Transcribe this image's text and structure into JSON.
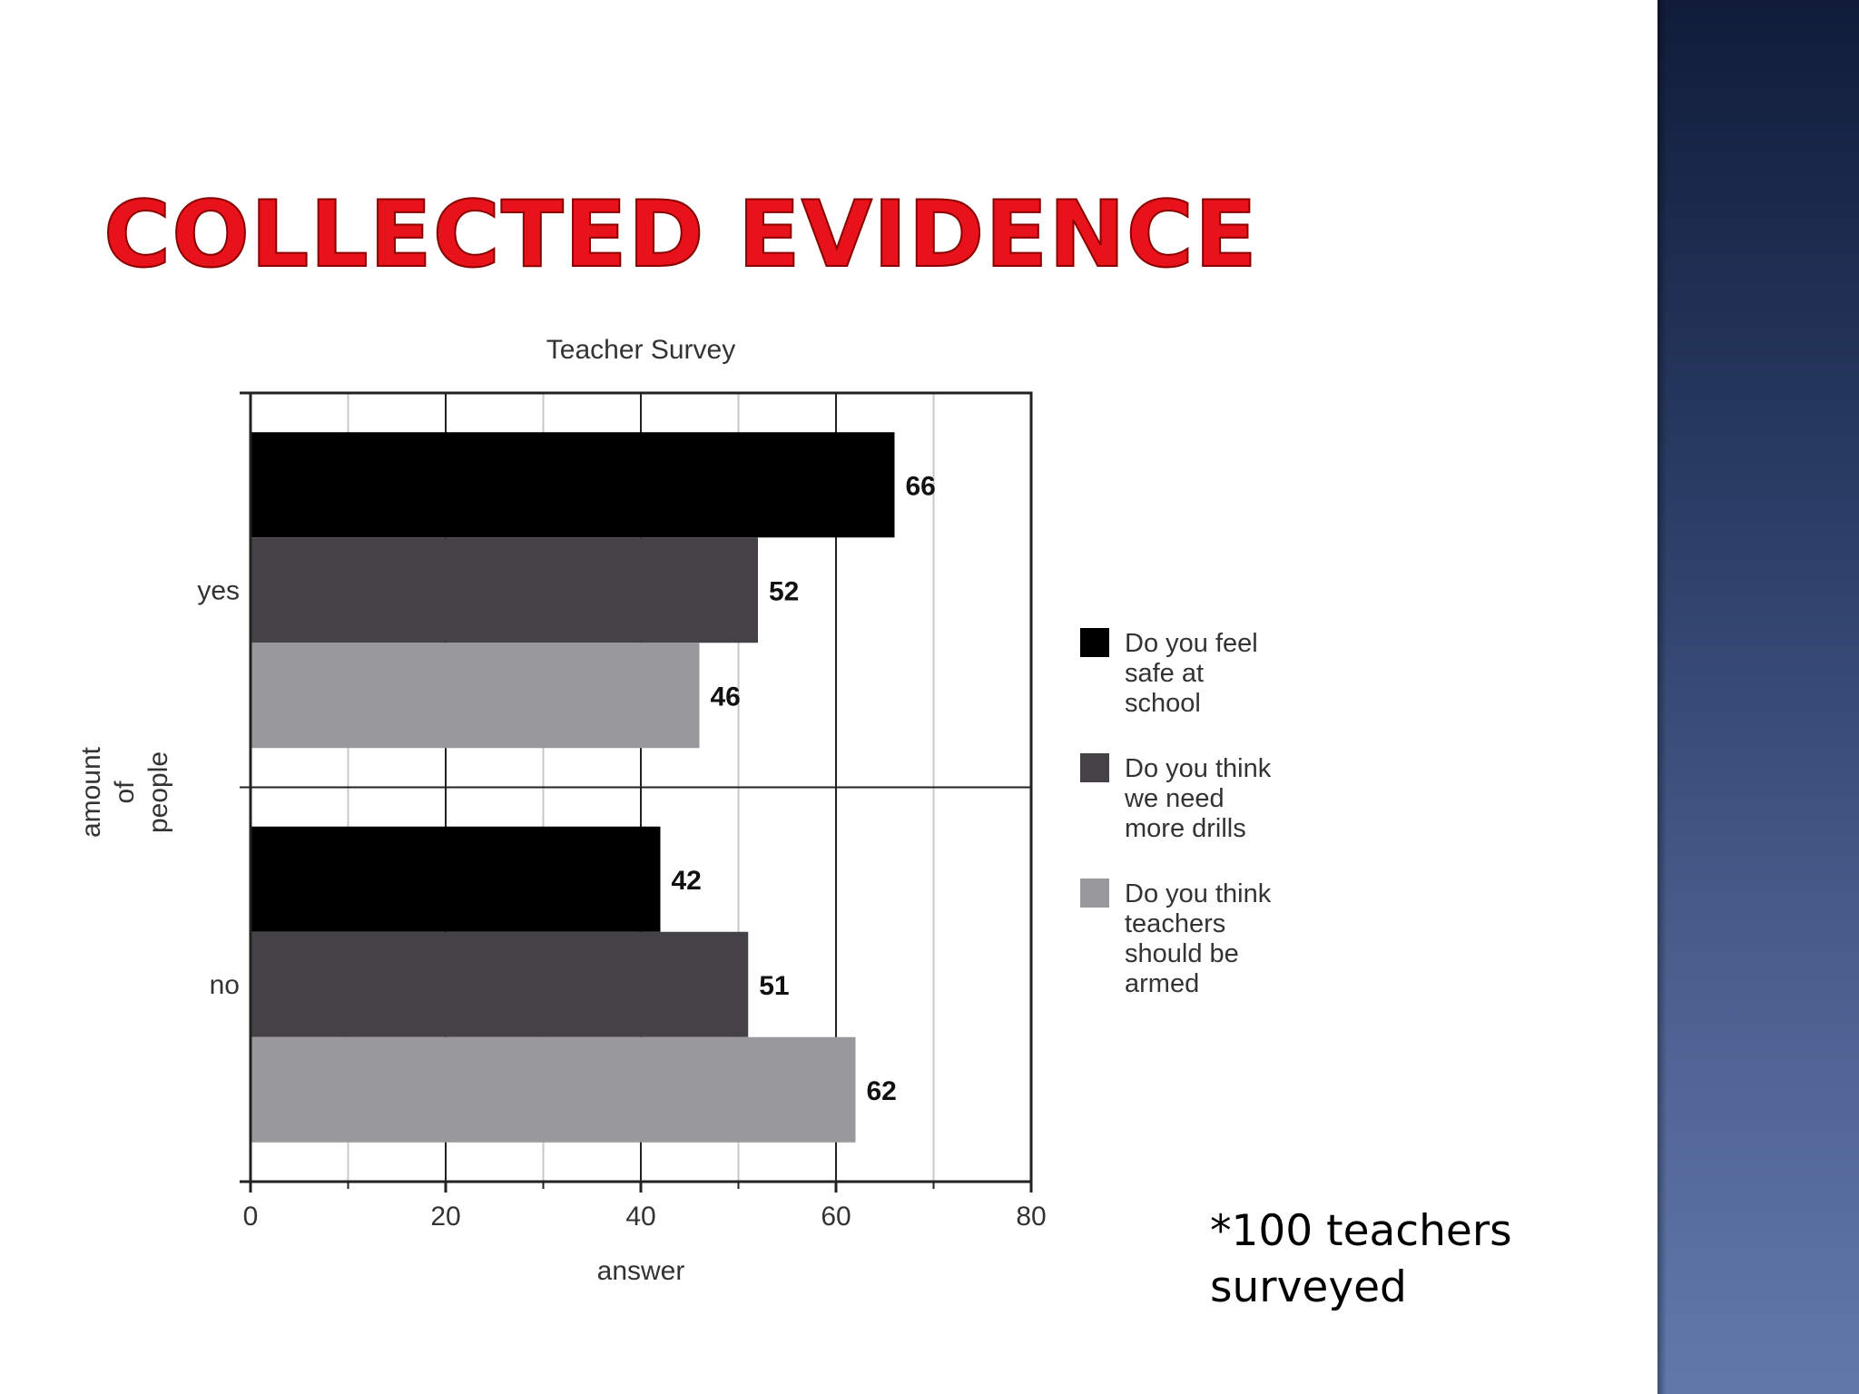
{
  "slide": {
    "title": "COLLECTED EVIDENCE",
    "footnote_lines": [
      "*100 teachers",
      "surveyed"
    ],
    "title_color": "#e8121a"
  },
  "chart_data": {
    "type": "bar",
    "orientation": "horizontal",
    "title": "Teacher Survey",
    "xlabel": "answer",
    "ylabel_lines": [
      "amount",
      "of",
      "people"
    ],
    "categories": [
      "yes",
      "no"
    ],
    "series": [
      {
        "name": "Do you feel safe at school",
        "legend_lines": [
          "Do you feel",
          "safe at",
          "school"
        ],
        "color": "#000000",
        "values": [
          66,
          42
        ]
      },
      {
        "name": "Do you think we need more drills",
        "legend_lines": [
          "Do you think",
          "we need",
          "more drills"
        ],
        "color": "#444246",
        "values": [
          52,
          51
        ]
      },
      {
        "name": "Do you think teachers should be armed",
        "legend_lines": [
          "Do you think",
          "teachers",
          "should be",
          "armed"
        ],
        "color": "#99989b",
        "values": [
          46,
          62
        ]
      }
    ],
    "xlim": [
      0,
      80
    ],
    "xticks": [
      0,
      20,
      40,
      60,
      80
    ],
    "grid": true,
    "data_labels": true,
    "legend_position": "right"
  }
}
